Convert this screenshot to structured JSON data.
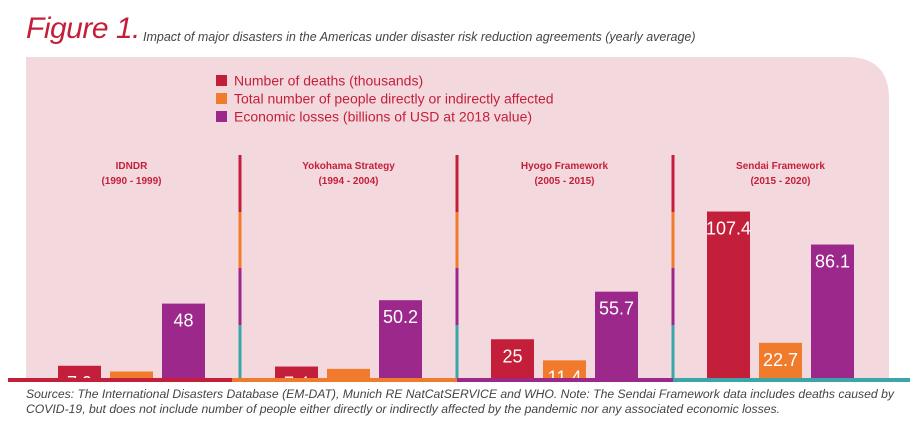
{
  "header": {
    "figure_label": "Figure 1.",
    "caption": "Impact of major disasters in the Americas under disaster risk reduction agreements (yearly average)"
  },
  "colors": {
    "deaths": "#c41f3a",
    "affected": "#f07b2d",
    "losses": "#9b288a",
    "panel_bg": "#f3d9dd",
    "teal": "#3aa6a8"
  },
  "chart_data": {
    "type": "bar",
    "title": "",
    "legend_placement": "top-center",
    "series": [
      {
        "name": "Number of deaths (thousands)",
        "values": [
          7.9,
          7.4,
          25,
          107.4
        ]
      },
      {
        "name": "Total number of people directly or indirectly affected",
        "values": [
          4.2,
          5.9,
          11.4,
          22.7
        ]
      },
      {
        "name": "Economic losses (billions of USD at 2018 value)",
        "values": [
          48,
          50.2,
          55.7,
          86.1
        ]
      }
    ],
    "groups": [
      {
        "name": "IDNDR",
        "years": "(1990 - 1999)"
      },
      {
        "name": "Yokohama Strategy",
        "years": "(1994 - 2004)"
      },
      {
        "name": "Hyogo Framework",
        "years": "(2005 - 2015)"
      },
      {
        "name": "Sendai Framework",
        "years": "(2015 - 2020)"
      }
    ],
    "value_labels": [
      [
        "7.9",
        "7.4",
        "25",
        "107.4"
      ],
      [
        "4.2",
        "5.9",
        "11.4",
        "22.7"
      ],
      [
        "48",
        "50.2",
        "55.7",
        "86.1"
      ]
    ]
  },
  "source_note": "Sources: The International Disasters Database (EM-DAT), Munich RE NatCatSERVICE and WHO. Note: The Sendai Framework data includes deaths caused by COVID-19, but does not include number of people either directly or indirectly affected by the pandemic nor any associated economic losses."
}
